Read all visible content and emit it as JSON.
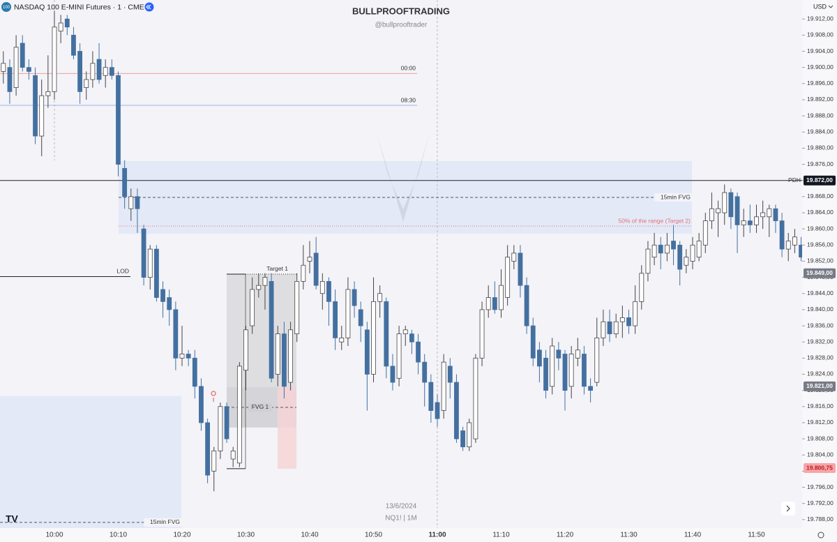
{
  "chart_data": {
    "type": "candlestick",
    "title": "NASDAQ 100 E-MINI Futures · 1 · CME",
    "symbol_badge": "100",
    "watermark": "BULLPROOFTRADING",
    "watermark_handle": "@bullprooftrader",
    "date_label": "13/6/2024",
    "symbol_label": "NQ1! | 1M",
    "currency": "USD",
    "up_color": "#ffffff",
    "down_color": "#4470a0",
    "ylim": [
      19785.9,
      19916.7
    ],
    "yticks": [
      {
        "value": 19788,
        "label": "19.788,00"
      },
      {
        "value": 19792,
        "label": "19.792,00"
      },
      {
        "value": 19796,
        "label": "19.796,00"
      },
      {
        "value": 19800,
        "label": "19.800,00"
      },
      {
        "value": 19804,
        "label": "19.804,00"
      },
      {
        "value": 19808,
        "label": "19.808,00"
      },
      {
        "value": 19812,
        "label": "19.812,00"
      },
      {
        "value": 19816,
        "label": "19.816,00"
      },
      {
        "value": 19820,
        "label": "19.820,00"
      },
      {
        "value": 19824,
        "label": "19.824,00"
      },
      {
        "value": 19828,
        "label": "19.828,00"
      },
      {
        "value": 19832,
        "label": "19.832,00"
      },
      {
        "value": 19836,
        "label": "19.836,00"
      },
      {
        "value": 19840,
        "label": "19.840,00"
      },
      {
        "value": 19844,
        "label": "19.844,00"
      },
      {
        "value": 19848,
        "label": "19.848,00"
      },
      {
        "value": 19852,
        "label": "19.852,00"
      },
      {
        "value": 19856,
        "label": "19.856,00"
      },
      {
        "value": 19860,
        "label": "19.860,00"
      },
      {
        "value": 19864,
        "label": "19.864,00"
      },
      {
        "value": 19868,
        "label": "19.868,00"
      },
      {
        "value": 19872,
        "label": "19.872,00"
      },
      {
        "value": 19876,
        "label": "19.876,00"
      },
      {
        "value": 19880,
        "label": "19.880,00"
      },
      {
        "value": 19884,
        "label": "19.884,00"
      },
      {
        "value": 19888,
        "label": "19.888,00"
      },
      {
        "value": 19892,
        "label": "19.892,00"
      },
      {
        "value": 19896,
        "label": "19.896,00"
      },
      {
        "value": 19900,
        "label": "19.900,00"
      },
      {
        "value": 19904,
        "label": "19.904,00"
      },
      {
        "value": 19908,
        "label": "19.908,00"
      },
      {
        "value": 19912,
        "label": "19.912,00"
      }
    ],
    "axis_markers": [
      {
        "value": 19872,
        "label": "19.872,00",
        "color": "#131722"
      },
      {
        "value": 19849,
        "label": "19.849,00",
        "color": "#787b86"
      },
      {
        "value": 19821,
        "label": "19.821,00",
        "color": "#787b86"
      },
      {
        "value": 19800.75,
        "label": "19.800,75",
        "color": "#f7a5a8"
      }
    ],
    "levels": [
      {
        "label": "00:00",
        "price": 19898.5,
        "color": "#f0a0a0"
      },
      {
        "label": "08:30",
        "price": 19890.6,
        "color": "#9fb4e8"
      },
      {
        "label": "PDH",
        "price": 19872,
        "color": "#222222"
      },
      {
        "label": "LOD",
        "price": 19848.2,
        "color": "#222222"
      },
      {
        "label": "15min FVG",
        "price": 19867.8,
        "color": "#555555"
      },
      {
        "label": "50% of the range (Target 2)",
        "price": 19860.7,
        "color": "#e57373"
      },
      {
        "label": "Target 1",
        "price": 19848.8,
        "color": "#333333"
      },
      {
        "label": "FVG 1",
        "price": 19815.8,
        "color": "#555555"
      },
      {
        "label": "15min FVG",
        "price": 19787.3,
        "color": "#555555"
      }
    ],
    "zones": [
      {
        "high": 19876.8,
        "low": 19858.8,
        "color": "#dfe6f7"
      },
      {
        "high": 19818.6,
        "low": 19785.9,
        "color": "#dfe6f7"
      },
      {
        "high": 19848.8,
        "low": 19820.8,
        "color": "#d9d9dd"
      },
      {
        "high": 19820.8,
        "low": 19810.8,
        "color": "#cfcfd4"
      },
      {
        "high": 19820.8,
        "low": 19800.6,
        "color": "#f5d3d6"
      }
    ],
    "categories": [
      null,
      null,
      null,
      null,
      null,
      null,
      null,
      null,
      "10:00",
      null,
      null,
      null,
      null,
      null,
      null,
      null,
      null,
      null,
      "10:10",
      null,
      null,
      null,
      null,
      null,
      null,
      null,
      null,
      null,
      "10:20",
      null,
      null,
      null,
      null,
      null,
      null,
      null,
      null,
      null,
      "10:30",
      null,
      null,
      null,
      null,
      null,
      null,
      null,
      null,
      null,
      "10:40",
      null,
      null,
      null,
      null,
      null,
      null,
      null,
      null,
      null,
      "10:50",
      null,
      null,
      null,
      null,
      null,
      null,
      null,
      null,
      null,
      "11:00",
      null,
      null,
      null,
      null,
      null,
      null,
      null,
      null,
      null,
      "11:10",
      null,
      null,
      null,
      null,
      null,
      null,
      null,
      null,
      null,
      "11:20",
      null,
      null,
      null,
      null,
      null,
      null,
      null,
      null,
      null,
      "11:30",
      null,
      null,
      null,
      null,
      null,
      null,
      null,
      null,
      null,
      "11:40",
      null,
      null,
      null,
      null,
      null,
      null,
      null,
      null,
      null,
      "11:50",
      null,
      null,
      null,
      null,
      null,
      null,
      null
    ],
    "candles": [
      {
        "o": 19899,
        "h": 19904,
        "l": 19896,
        "c": 19901
      },
      {
        "o": 19900,
        "h": 19902,
        "l": 19891,
        "c": 19894
      },
      {
        "o": 19895,
        "h": 19908,
        "l": 19893,
        "c": 19905
      },
      {
        "o": 19906,
        "h": 19908,
        "l": 19899,
        "c": 19900
      },
      {
        "o": 19900,
        "h": 19902,
        "l": 19897,
        "c": 19899
      },
      {
        "o": 19898,
        "h": 19900,
        "l": 19881,
        "c": 19883
      },
      {
        "o": 19883,
        "h": 19897,
        "l": 19878,
        "c": 19893
      },
      {
        "o": 19893,
        "h": 19903,
        "l": 19890,
        "c": 19894
      },
      {
        "o": 19894,
        "h": 19914,
        "l": 19892,
        "c": 19910
      },
      {
        "o": 19909,
        "h": 19913,
        "l": 19906,
        "c": 19911
      },
      {
        "o": 19912,
        "h": 19913,
        "l": 19908,
        "c": 19910
      },
      {
        "o": 19908,
        "h": 19910,
        "l": 19902,
        "c": 19903
      },
      {
        "o": 19904,
        "h": 19906,
        "l": 19891,
        "c": 19894
      },
      {
        "o": 19895,
        "h": 19899,
        "l": 19892,
        "c": 19897
      },
      {
        "o": 19897,
        "h": 19904,
        "l": 19895,
        "c": 19901
      },
      {
        "o": 19902,
        "h": 19906,
        "l": 19896,
        "c": 19897
      },
      {
        "o": 19898,
        "h": 19902,
        "l": 19895,
        "c": 19900
      },
      {
        "o": 19900,
        "h": 19902,
        "l": 19897,
        "c": 19898
      },
      {
        "o": 19898,
        "h": 19899,
        "l": 19873,
        "c": 19876
      },
      {
        "o": 19875,
        "h": 19877,
        "l": 19865,
        "c": 19868
      },
      {
        "o": 19865,
        "h": 19870,
        "l": 19862,
        "c": 19868
      },
      {
        "o": 19868,
        "h": 19870,
        "l": 19859,
        "c": 19865
      },
      {
        "o": 19860,
        "h": 19861,
        "l": 19846,
        "c": 19848
      },
      {
        "o": 19848,
        "h": 19856,
        "l": 19845,
        "c": 19855
      },
      {
        "o": 19855,
        "h": 19856,
        "l": 19842,
        "c": 19843
      },
      {
        "o": 19845,
        "h": 19847,
        "l": 19838,
        "c": 19842
      },
      {
        "o": 19843,
        "h": 19845,
        "l": 19836,
        "c": 19840
      },
      {
        "o": 19840,
        "h": 19842,
        "l": 19825,
        "c": 19828
      },
      {
        "o": 19828,
        "h": 19836,
        "l": 19826,
        "c": 19829
      },
      {
        "o": 19829,
        "h": 19830,
        "l": 19826,
        "c": 19828
      },
      {
        "o": 19828,
        "h": 19830,
        "l": 19818,
        "c": 19821
      },
      {
        "o": 19821,
        "h": 19823,
        "l": 19810,
        "c": 19812
      },
      {
        "o": 19812,
        "h": 19813,
        "l": 19797,
        "c": 19799
      },
      {
        "o": 19800,
        "h": 19806,
        "l": 19795,
        "c": 19805
      },
      {
        "o": 19805,
        "h": 19817,
        "l": 19803,
        "c": 19816
      },
      {
        "o": 19816,
        "h": 19817,
        "l": 19807,
        "c": 19808
      },
      {
        "o": 19803,
        "h": 19806,
        "l": 19801,
        "c": 19805
      },
      {
        "o": 19802,
        "h": 19827,
        "l": 19801,
        "c": 19826
      },
      {
        "o": 19825,
        "h": 19836,
        "l": 19820,
        "c": 19835
      },
      {
        "o": 19836,
        "h": 19848,
        "l": 19834,
        "c": 19845
      },
      {
        "o": 19845,
        "h": 19849,
        "l": 19843,
        "c": 19846
      },
      {
        "o": 19846,
        "h": 19849,
        "l": 19840,
        "c": 19848
      },
      {
        "o": 19847,
        "h": 19849,
        "l": 19822,
        "c": 19823
      },
      {
        "o": 19824,
        "h": 19836,
        "l": 19821,
        "c": 19834
      },
      {
        "o": 19834,
        "h": 19837,
        "l": 19818,
        "c": 19821
      },
      {
        "o": 19822,
        "h": 19837,
        "l": 19820,
        "c": 19835
      },
      {
        "o": 19834,
        "h": 19849,
        "l": 19832,
        "c": 19847
      },
      {
        "o": 19847,
        "h": 19856,
        "l": 19845,
        "c": 19851
      },
      {
        "o": 19852,
        "h": 19857,
        "l": 19849,
        "c": 19853
      },
      {
        "o": 19854,
        "h": 19858,
        "l": 19845,
        "c": 19846
      },
      {
        "o": 19844,
        "h": 19849,
        "l": 19840,
        "c": 19847
      },
      {
        "o": 19847,
        "h": 19848,
        "l": 19836,
        "c": 19842
      },
      {
        "o": 19842,
        "h": 19845,
        "l": 19830,
        "c": 19833
      },
      {
        "o": 19832,
        "h": 19836,
        "l": 19830,
        "c": 19833
      },
      {
        "o": 19833,
        "h": 19848,
        "l": 19831,
        "c": 19845
      },
      {
        "o": 19845,
        "h": 19847,
        "l": 19838,
        "c": 19841
      },
      {
        "o": 19840,
        "h": 19842,
        "l": 19832,
        "c": 19836
      },
      {
        "o": 19835,
        "h": 19837,
        "l": 19815,
        "c": 19824
      },
      {
        "o": 19824,
        "h": 19848,
        "l": 19822,
        "c": 19842
      },
      {
        "o": 19842,
        "h": 19846,
        "l": 19838,
        "c": 19844
      },
      {
        "o": 19842,
        "h": 19843,
        "l": 19823,
        "c": 19826
      },
      {
        "o": 19826,
        "h": 19829,
        "l": 19820,
        "c": 19822
      },
      {
        "o": 19823,
        "h": 19836,
        "l": 19821,
        "c": 19834
      },
      {
        "o": 19834,
        "h": 19836,
        "l": 19831,
        "c": 19835
      },
      {
        "o": 19834,
        "h": 19835,
        "l": 19829,
        "c": 19832
      },
      {
        "o": 19832,
        "h": 19834,
        "l": 19824,
        "c": 19827
      },
      {
        "o": 19827,
        "h": 19829,
        "l": 19816,
        "c": 19822
      },
      {
        "o": 19822,
        "h": 19824,
        "l": 19812,
        "c": 19815
      },
      {
        "o": 19817,
        "h": 19819,
        "l": 19811,
        "c": 19813
      },
      {
        "o": 19815,
        "h": 19829,
        "l": 19813,
        "c": 19827
      },
      {
        "o": 19826,
        "h": 19828,
        "l": 19818,
        "c": 19822
      },
      {
        "o": 19822,
        "h": 19824,
        "l": 19807,
        "c": 19808
      },
      {
        "o": 19810,
        "h": 19811,
        "l": 19805,
        "c": 19806
      },
      {
        "o": 19806,
        "h": 19813,
        "l": 19805,
        "c": 19812
      },
      {
        "o": 19808,
        "h": 19829,
        "l": 19807,
        "c": 19828
      },
      {
        "o": 19828,
        "h": 19842,
        "l": 19826,
        "c": 19840
      },
      {
        "o": 19840,
        "h": 19846,
        "l": 19838,
        "c": 19843
      },
      {
        "o": 19843,
        "h": 19847,
        "l": 19839,
        "c": 19840
      },
      {
        "o": 19840,
        "h": 19850,
        "l": 19838,
        "c": 19846
      },
      {
        "o": 19843,
        "h": 19856,
        "l": 19841,
        "c": 19853
      },
      {
        "o": 19852,
        "h": 19856,
        "l": 19850,
        "c": 19854
      },
      {
        "o": 19854,
        "h": 19856,
        "l": 19843,
        "c": 19846
      },
      {
        "o": 19846,
        "h": 19848,
        "l": 19834,
        "c": 19836
      },
      {
        "o": 19836,
        "h": 19838,
        "l": 19826,
        "c": 19828
      },
      {
        "o": 19830,
        "h": 19832,
        "l": 19822,
        "c": 19826
      },
      {
        "o": 19828,
        "h": 19830,
        "l": 19818,
        "c": 19820
      },
      {
        "o": 19821,
        "h": 19833,
        "l": 19819,
        "c": 19831
      },
      {
        "o": 19830,
        "h": 19832,
        "l": 19825,
        "c": 19828
      },
      {
        "o": 19829,
        "h": 19830,
        "l": 19815,
        "c": 19820
      },
      {
        "o": 19821,
        "h": 19831,
        "l": 19818,
        "c": 19829
      },
      {
        "o": 19828,
        "h": 19833,
        "l": 19826,
        "c": 19830
      },
      {
        "o": 19829,
        "h": 19831,
        "l": 19819,
        "c": 19821
      },
      {
        "o": 19821,
        "h": 19823,
        "l": 19817,
        "c": 19820
      },
      {
        "o": 19822,
        "h": 19838,
        "l": 19821,
        "c": 19833
      },
      {
        "o": 19833,
        "h": 19840,
        "l": 19831,
        "c": 19837
      },
      {
        "o": 19837,
        "h": 19840,
        "l": 19832,
        "c": 19834
      },
      {
        "o": 19834,
        "h": 19839,
        "l": 19833,
        "c": 19837
      },
      {
        "o": 19837,
        "h": 19841,
        "l": 19833,
        "c": 19838
      },
      {
        "o": 19838,
        "h": 19840,
        "l": 19834,
        "c": 19836
      },
      {
        "o": 19836,
        "h": 19846,
        "l": 19834,
        "c": 19842
      },
      {
        "o": 19842,
        "h": 19851,
        "l": 19840,
        "c": 19849
      },
      {
        "o": 19849,
        "h": 19857,
        "l": 19847,
        "c": 19855
      },
      {
        "o": 19853,
        "h": 19859,
        "l": 19851,
        "c": 19856
      },
      {
        "o": 19856,
        "h": 19858,
        "l": 19850,
        "c": 19854
      },
      {
        "o": 19854,
        "h": 19859,
        "l": 19852,
        "c": 19856
      },
      {
        "o": 19857,
        "h": 19861,
        "l": 19851,
        "c": 19855
      },
      {
        "o": 19856,
        "h": 19857,
        "l": 19846,
        "c": 19850
      },
      {
        "o": 19851,
        "h": 19855,
        "l": 19849,
        "c": 19853
      },
      {
        "o": 19852,
        "h": 19858,
        "l": 19850,
        "c": 19856
      },
      {
        "o": 19853,
        "h": 19859,
        "l": 19852,
        "c": 19857
      },
      {
        "o": 19856,
        "h": 19864,
        "l": 19854,
        "c": 19862
      },
      {
        "o": 19862,
        "h": 19869,
        "l": 19860,
        "c": 19865
      },
      {
        "o": 19864,
        "h": 19867,
        "l": 19858,
        "c": 19865
      },
      {
        "o": 19864,
        "h": 19871,
        "l": 19861,
        "c": 19869
      },
      {
        "o": 19869,
        "h": 19870,
        "l": 19860,
        "c": 19863
      },
      {
        "o": 19868,
        "h": 19869,
        "l": 19854,
        "c": 19861
      },
      {
        "o": 19861,
        "h": 19865,
        "l": 19858,
        "c": 19862
      },
      {
        "o": 19862,
        "h": 19866,
        "l": 19859,
        "c": 19861
      },
      {
        "o": 19861,
        "h": 19866,
        "l": 19859,
        "c": 19863
      },
      {
        "o": 19863,
        "h": 19867,
        "l": 19860,
        "c": 19864
      },
      {
        "o": 19863,
        "h": 19866,
        "l": 19858,
        "c": 19865
      },
      {
        "o": 19865,
        "h": 19866,
        "l": 19859,
        "c": 19862
      },
      {
        "o": 19862,
        "h": 19864,
        "l": 19853,
        "c": 19855
      },
      {
        "o": 19855,
        "h": 19859,
        "l": 19852,
        "c": 19857
      },
      {
        "o": 19856,
        "h": 19860,
        "l": 19854,
        "c": 19858
      },
      {
        "o": 19856,
        "h": 19858,
        "l": 19852,
        "c": 19853
      }
    ]
  }
}
